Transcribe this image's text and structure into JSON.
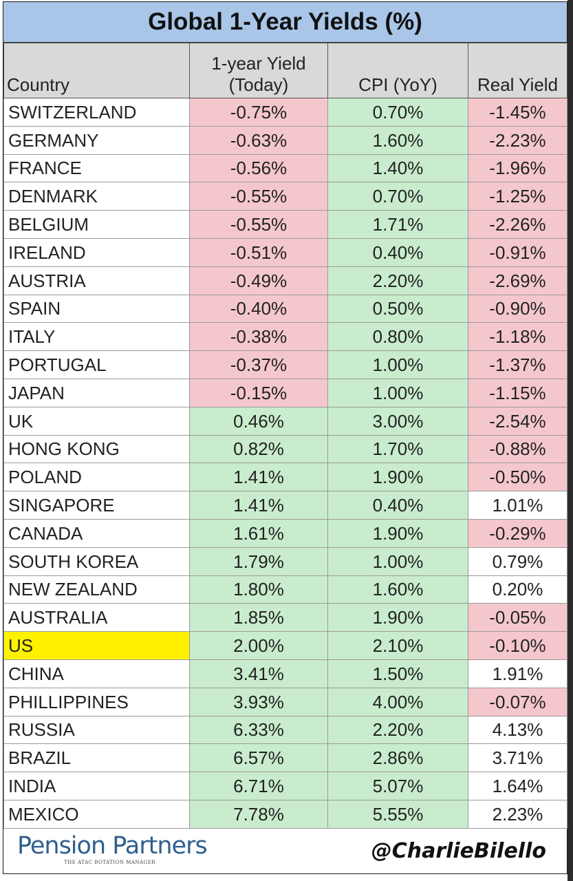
{
  "chart_data": {
    "type": "table",
    "title": "Global 1-Year Yields (%)",
    "columns": [
      "Country",
      "1-year Yield (Today)",
      "CPI (YoY)",
      "Real Yield"
    ],
    "header": {
      "country": "Country",
      "yield_line1": "1-year Yield",
      "yield_line2": "(Today)",
      "cpi": "CPI (YoY)",
      "real": "Real Yield"
    },
    "rows": [
      {
        "country": "SWITZERLAND",
        "yield": "-0.75%",
        "cpi": "0.70%",
        "real": "-1.45%"
      },
      {
        "country": "GERMANY",
        "yield": "-0.63%",
        "cpi": "1.60%",
        "real": "-2.23%"
      },
      {
        "country": "FRANCE",
        "yield": "-0.56%",
        "cpi": "1.40%",
        "real": "-1.96%"
      },
      {
        "country": "DENMARK",
        "yield": "-0.55%",
        "cpi": "0.70%",
        "real": "-1.25%"
      },
      {
        "country": "BELGIUM",
        "yield": "-0.55%",
        "cpi": "1.71%",
        "real": "-2.26%"
      },
      {
        "country": "IRELAND",
        "yield": "-0.51%",
        "cpi": "0.40%",
        "real": "-0.91%"
      },
      {
        "country": "AUSTRIA",
        "yield": "-0.49%",
        "cpi": "2.20%",
        "real": "-2.69%"
      },
      {
        "country": "SPAIN",
        "yield": "-0.40%",
        "cpi": "0.50%",
        "real": "-0.90%"
      },
      {
        "country": "ITALY",
        "yield": "-0.38%",
        "cpi": "0.80%",
        "real": "-1.18%"
      },
      {
        "country": "PORTUGAL",
        "yield": "-0.37%",
        "cpi": "1.00%",
        "real": "-1.37%"
      },
      {
        "country": "JAPAN",
        "yield": "-0.15%",
        "cpi": "1.00%",
        "real": "-1.15%"
      },
      {
        "country": "UK",
        "yield": "0.46%",
        "cpi": "3.00%",
        "real": "-2.54%"
      },
      {
        "country": "HONG KONG",
        "yield": "0.82%",
        "cpi": "1.70%",
        "real": "-0.88%"
      },
      {
        "country": "POLAND",
        "yield": "1.41%",
        "cpi": "1.90%",
        "real": "-0.50%"
      },
      {
        "country": "SINGAPORE",
        "yield": "1.41%",
        "cpi": "0.40%",
        "real": "1.01%"
      },
      {
        "country": "CANADA",
        "yield": "1.61%",
        "cpi": "1.90%",
        "real": "-0.29%"
      },
      {
        "country": "SOUTH KOREA",
        "yield": "1.79%",
        "cpi": "1.00%",
        "real": "0.79%"
      },
      {
        "country": "NEW ZEALAND",
        "yield": "1.80%",
        "cpi": "1.60%",
        "real": "0.20%"
      },
      {
        "country": "AUSTRALIA",
        "yield": "1.85%",
        "cpi": "1.90%",
        "real": "-0.05%"
      },
      {
        "country": "US",
        "yield": "2.00%",
        "cpi": "2.10%",
        "real": "-0.10%",
        "highlight": true
      },
      {
        "country": "CHINA",
        "yield": "3.41%",
        "cpi": "1.50%",
        "real": "1.91%"
      },
      {
        "country": "PHILLIPPINES",
        "yield": "3.93%",
        "cpi": "4.00%",
        "real": "-0.07%"
      },
      {
        "country": "RUSSIA",
        "yield": "6.33%",
        "cpi": "2.20%",
        "real": "4.13%"
      },
      {
        "country": "BRAZIL",
        "yield": "6.57%",
        "cpi": "2.86%",
        "real": "3.71%"
      },
      {
        "country": "INDIA",
        "yield": "6.71%",
        "cpi": "5.07%",
        "real": "1.64%"
      },
      {
        "country": "MEXICO",
        "yield": "7.78%",
        "cpi": "5.55%",
        "real": "2.23%"
      }
    ],
    "colors": {
      "negative": "#f4c7cc",
      "positive": "#c8eccd",
      "highlight": "#fff200",
      "title_bg": "#a9c6e8",
      "header_bg": "#d9d9d9"
    }
  },
  "footer": {
    "logo": "Pension Partners",
    "logo_sub": "THE ATAC ROTATION MANAGER",
    "handle": "@CharlieBilello"
  }
}
